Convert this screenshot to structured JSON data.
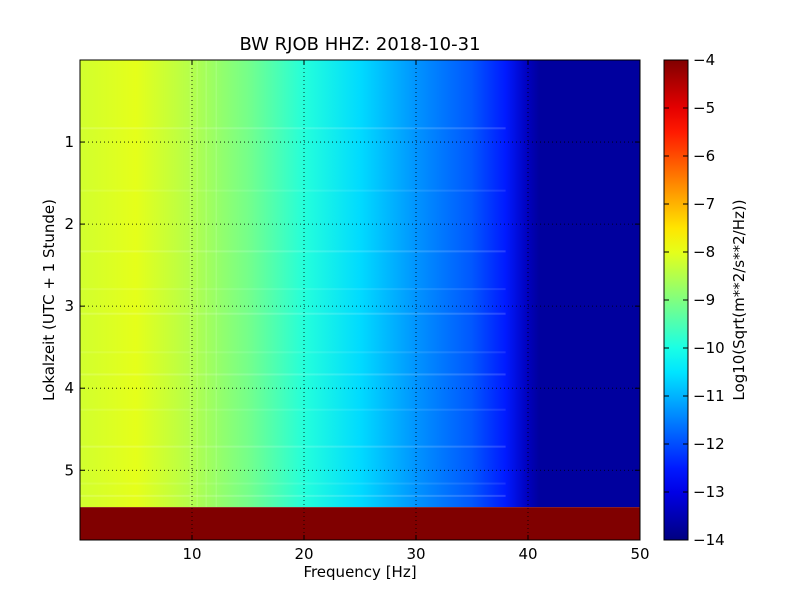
{
  "chart_data": {
    "type": "heatmap",
    "title": "BW RJOB HHZ: 2018-10-31",
    "xlabel": "Frequency [Hz]",
    "ylabel": "Lokalzeit (UTC + 1 Stunde)",
    "colorbar_label": "Log10(Sqrt(m**2/s**2/Hz))",
    "xlim": [
      0,
      50
    ],
    "ylim": [
      5.85,
      0
    ],
    "x_ticks": [
      10,
      20,
      30,
      40,
      50
    ],
    "y_ticks": [
      1,
      2,
      3,
      4,
      5
    ],
    "x_tick_labels": [
      "10",
      "20",
      "30",
      "40",
      "50"
    ],
    "y_tick_labels": [
      "1",
      "2",
      "3",
      "4",
      "5"
    ],
    "colorbar_range": [
      -14,
      -4
    ],
    "colorbar_ticks": [
      -4,
      -5,
      -6,
      -7,
      -8,
      -9,
      -10,
      -11,
      -12,
      -13,
      -14
    ],
    "colorbar_tick_labels": [
      "−4",
      "−5",
      "−6",
      "−7",
      "−8",
      "−9",
      "−10",
      "−11",
      "−12",
      "−13",
      "−14"
    ],
    "colormap": "jet",
    "grid": true,
    "frequency_profile": {
      "frequency_hz": [
        0,
        5,
        10,
        15,
        20,
        25,
        30,
        35,
        38,
        40,
        41,
        45,
        50
      ],
      "log10_amplitude": [
        -8.2,
        -8.0,
        -8.5,
        -9.1,
        -9.9,
        -10.6,
        -11.3,
        -11.9,
        -12.5,
        -13.4,
        -13.7,
        -13.7,
        -13.7
      ]
    },
    "no_data_from_hour": 5.45,
    "no_data_value": -4
  }
}
